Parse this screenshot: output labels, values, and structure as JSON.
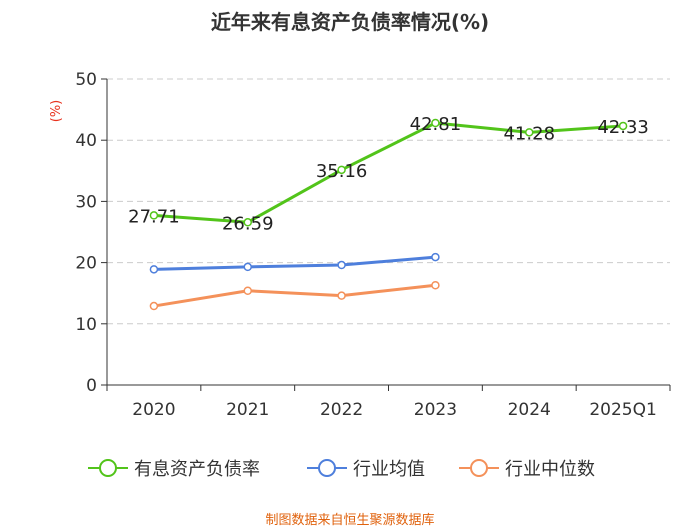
{
  "title": "近年来有息资产负债率情况(%)",
  "source": "制图数据来自恒生聚源数据库",
  "chart_data": {
    "type": "line",
    "title": "近年来有息资产负债率情况(%)",
    "xlabel": "",
    "ylabel": "(%)",
    "categories": [
      "2020",
      "2021",
      "2022",
      "2023",
      "2024",
      "2025Q1"
    ],
    "ylim": [
      0,
      50
    ],
    "yticks": [
      0,
      10,
      20,
      30,
      40,
      50
    ],
    "grid": true,
    "legend": "bottom",
    "series": [
      {
        "name": "有息资产负债率",
        "color": "#52c41a",
        "labels": true,
        "values": [
          27.71,
          26.59,
          35.16,
          42.81,
          41.28,
          42.33
        ]
      },
      {
        "name": "行业均值",
        "color": "#4e7fdc",
        "labels": false,
        "values": [
          18.9,
          19.3,
          19.6,
          20.9,
          null,
          null
        ]
      },
      {
        "name": "行业中位数",
        "color": "#f4915a",
        "labels": false,
        "values": [
          12.9,
          15.4,
          14.6,
          16.3,
          null,
          null
        ]
      }
    ]
  }
}
